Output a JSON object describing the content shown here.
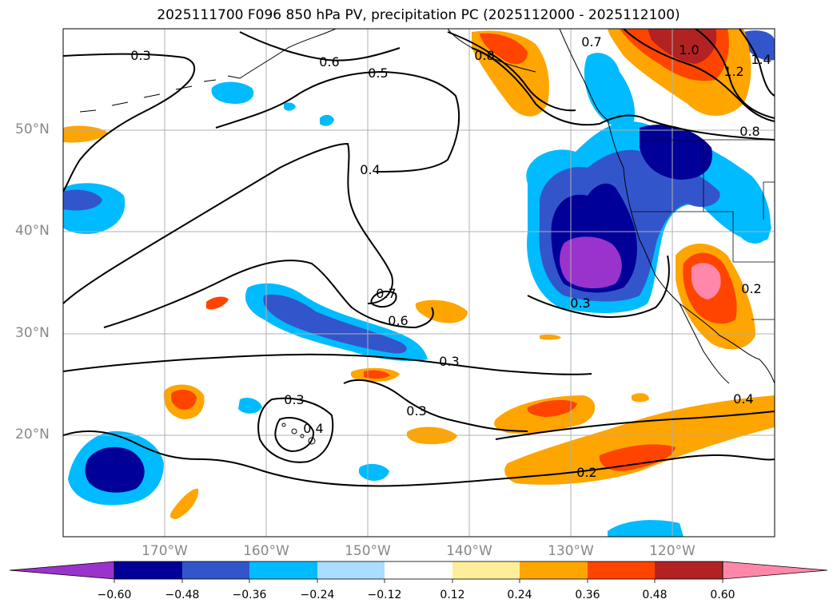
{
  "title": "2025111700 F096 850 hPa PV, precipitation PC (2025112000 - 2025112100)",
  "lat_labels": [
    "50°N",
    "40°N",
    "30°N",
    "20°N"
  ],
  "lon_labels": [
    "170°W",
    "160°W",
    "150°W",
    "140°W",
    "130°W",
    "120°W"
  ],
  "colorbar": {
    "ticks": [
      "−0.60",
      "−0.48",
      "−0.36",
      "−0.24",
      "−0.12",
      "0.12",
      "0.24",
      "0.36",
      "0.48",
      "0.60"
    ],
    "colors": [
      "#9933cc",
      "#000099",
      "#3355cc",
      "#00bbff",
      "#aaddff",
      "#ffffff",
      "#ffee99",
      "#ffa500",
      "#ff4400",
      "#b22222",
      "#ff88aa"
    ]
  },
  "contour_labels": [
    "0.3",
    "0.6",
    "0.5",
    "0.8",
    "0.7",
    "1.0",
    "1.2",
    "1.4",
    "0.8",
    "0.4",
    "0.7",
    "0.6",
    "0.3",
    "0.3",
    "0.3",
    "0.4",
    "0.2",
    "0.4",
    "0.2",
    "0.3"
  ]
}
